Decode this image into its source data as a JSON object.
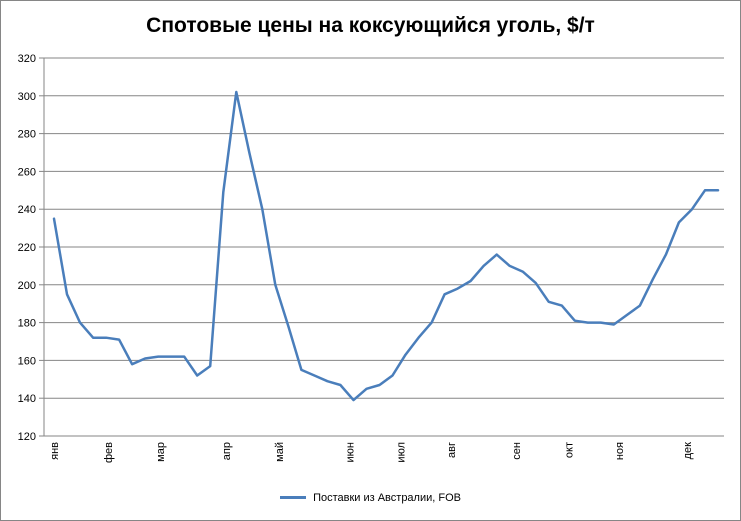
{
  "chart_data": {
    "type": "line",
    "title": "Спотовые цены на коксующийся уголь, $/т",
    "xlabel": "",
    "ylabel": "",
    "ylim": [
      120,
      320
    ],
    "yticks": [
      120,
      140,
      160,
      180,
      200,
      220,
      240,
      260,
      280,
      300,
      320
    ],
    "grid": true,
    "legend_position": "bottom",
    "month_labels": [
      "янв",
      "фев",
      "мар",
      "апр",
      "май",
      "июн",
      "июл",
      "авг",
      "сен",
      "окт",
      "ноя",
      "дек"
    ],
    "month_positions": [
      0,
      4.15,
      8.15,
      13.2,
      17.3,
      22.7,
      26.6,
      30.5,
      35.5,
      39.5,
      43.4,
      48.6
    ],
    "points_count": 52,
    "series": [
      {
        "name": "Поставки из Австралии, FOB",
        "color": "#4a7ebb",
        "x": [
          0,
          1,
          2,
          3,
          4,
          5,
          6,
          7,
          8,
          9,
          10,
          11,
          12,
          13,
          14,
          15,
          16,
          17,
          18,
          19,
          20,
          21,
          22,
          23,
          24,
          25,
          26,
          27,
          28,
          29,
          30,
          31,
          32,
          33,
          34,
          35,
          36,
          37,
          38,
          39,
          40,
          41,
          42,
          43,
          44,
          45,
          46,
          47,
          48,
          49,
          50,
          51
        ],
        "values": [
          235,
          195,
          180,
          172,
          172,
          171,
          158,
          161,
          162,
          162,
          162,
          152,
          157,
          249,
          302,
          270,
          240,
          200,
          178,
          155,
          152,
          149,
          147,
          139,
          145,
          147,
          152,
          163,
          172,
          180,
          195,
          198,
          202,
          210,
          216,
          210,
          207,
          201,
          191,
          189,
          181,
          180,
          180,
          179,
          184,
          189,
          203,
          216,
          233,
          240,
          250,
          250
        ]
      }
    ]
  }
}
